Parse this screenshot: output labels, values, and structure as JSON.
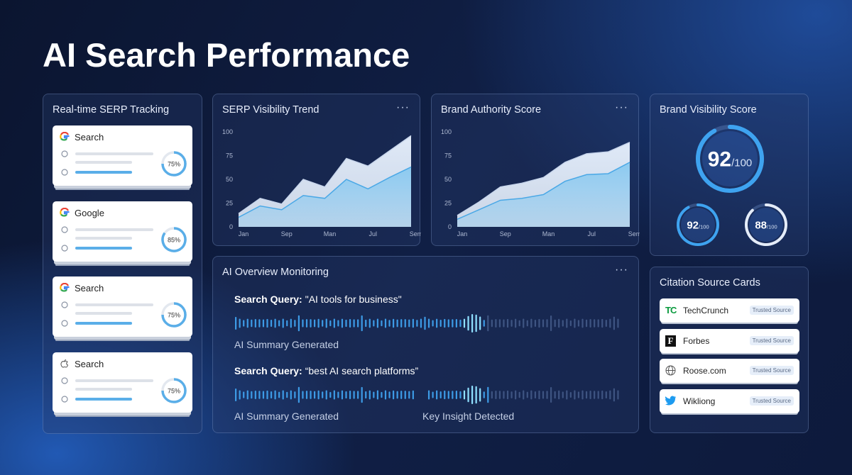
{
  "title": "AI Search Performance",
  "serp_tracking": {
    "title": "Real-time SERP Tracking",
    "cards": [
      {
        "engine": "Search",
        "progress": {
          "value": 75,
          "label": "75%"
        }
      },
      {
        "engine": "Google",
        "progress": {
          "value": 85,
          "label": "85%"
        }
      },
      {
        "engine": "Search",
        "progress": {
          "value": 75,
          "label": "75%"
        }
      },
      {
        "engine": "Search",
        "progress": {
          "value": 75,
          "label": "75%"
        }
      }
    ]
  },
  "visibility_trend": {
    "title": "SERP Visibility Trend",
    "chart": {
      "type": "area",
      "categories": [
        "Jan",
        null,
        "Sep",
        null,
        "Man",
        null,
        "Jul",
        null,
        "Sem"
      ],
      "series": [
        {
          "color": "#dfe9f7",
          "values": [
            14,
            30,
            24,
            50,
            42,
            72,
            64,
            80,
            96
          ]
        },
        {
          "color": "#8ccaf0",
          "values": [
            10,
            22,
            18,
            33,
            30,
            50,
            40,
            52,
            63
          ]
        }
      ],
      "ylim": [
        0,
        100
      ],
      "yticks": [
        0,
        25,
        50,
        75,
        100
      ]
    }
  },
  "brand_authority": {
    "title": "Brand Authority Score",
    "chart": {
      "type": "area",
      "categories": [
        "Jan",
        null,
        "Sep",
        null,
        "Man",
        null,
        "Jul",
        null,
        "Sem"
      ],
      "series": [
        {
          "color": "#dfe9f7",
          "values": [
            12,
            26,
            42,
            46,
            52,
            68,
            77,
            79,
            89
          ]
        },
        {
          "color": "#8ccaf0",
          "values": [
            8,
            18,
            28,
            30,
            34,
            48,
            55,
            56,
            68
          ]
        }
      ],
      "ylim": [
        0,
        100
      ],
      "yticks": [
        0,
        25,
        50,
        75,
        100
      ]
    }
  },
  "brand_visibility": {
    "title": "Brand Visibility Score",
    "scores": [
      {
        "value": 92,
        "scale": {
          "value": 100,
          "label": "/100"
        }
      },
      {
        "value": 92,
        "scale": {
          "value": 100,
          "label": "/100"
        }
      },
      {
        "value": 88,
        "scale": {
          "value": 100,
          "label": "/100"
        }
      }
    ]
  },
  "ai_overview": {
    "title": "AI Overview Monitoring",
    "queries": [
      {
        "label": "Search Query:",
        "query": "\"AI tools for business\"",
        "statuses": [
          "AI Summary Generated"
        ]
      },
      {
        "label": "Search Query:",
        "query": "“best AI search platforms”",
        "statuses": [
          "AI Summary Generated",
          "Key Insight Detected"
        ]
      }
    ]
  },
  "citations": {
    "title": "Citation Source Cards",
    "sources": [
      {
        "name": "TechCrunch",
        "badge": "Trusted Source"
      },
      {
        "name": "Forbes",
        "badge": "Trusted Source"
      },
      {
        "name": "Roose.com",
        "badge": "Trusted Source"
      },
      {
        "name": "Wikliong",
        "badge": "Trusted Source"
      }
    ]
  }
}
